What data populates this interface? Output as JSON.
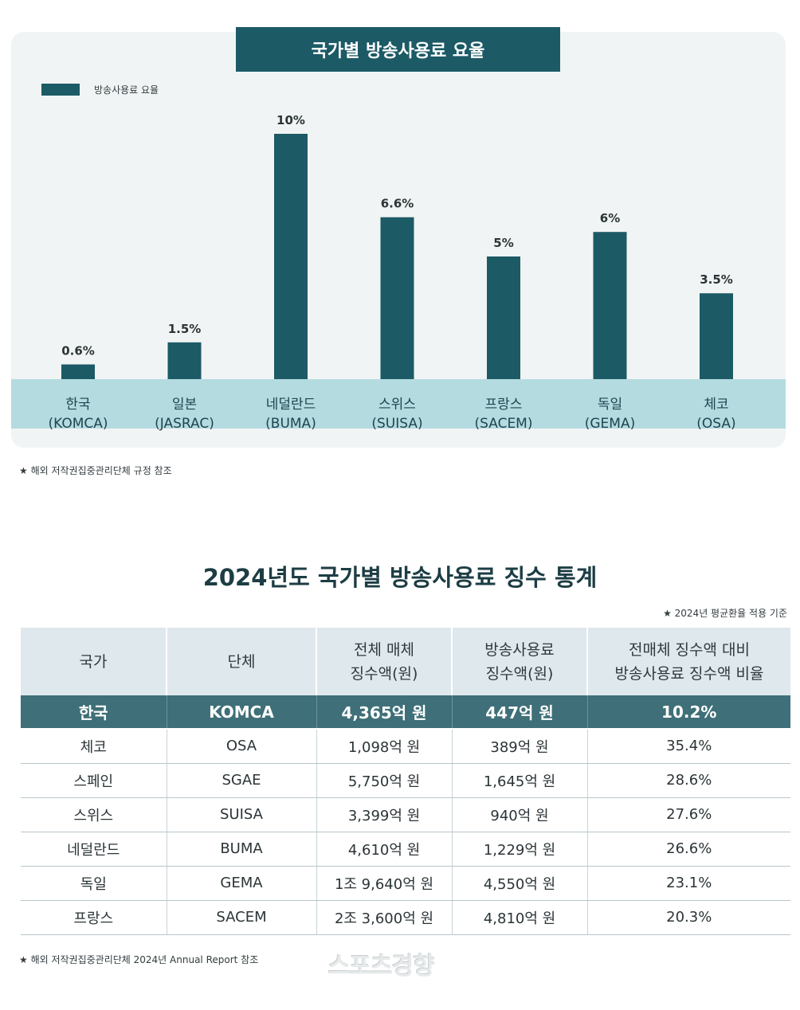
{
  "chart_data": {
    "type": "bar",
    "title": "국가별 방송사용료 요율",
    "legend": "방송사용료 요율",
    "categories": [
      {
        "name": "한국",
        "org": "(KOMCA)"
      },
      {
        "name": "일본",
        "org": "(JASRAC)"
      },
      {
        "name": "네덜란드",
        "org": "(BUMA)"
      },
      {
        "name": "스위스",
        "org": "(SUISA)"
      },
      {
        "name": "프랑스",
        "org": "(SACEM)"
      },
      {
        "name": "독일",
        "org": "(GEMA)"
      },
      {
        "name": "체코",
        "org": "(OSA)"
      }
    ],
    "values": [
      0.6,
      1.5,
      10,
      6.6,
      5,
      6,
      3.5
    ],
    "value_labels": [
      "0.6%",
      "1.5%",
      "10%",
      "6.6%",
      "5%",
      "6%",
      "3.5%"
    ],
    "ylim": [
      0,
      10
    ],
    "colors": {
      "bar": "#1c5a66",
      "axis_band": "#b4dce0",
      "card": "#f1f4f4"
    }
  },
  "chart_note": "해외 저작권집중관리단체 규정 참조",
  "table": {
    "title": "2024년도 국가별 방송사용료 징수 통계",
    "note": "2024년 평균환율 적용 기준",
    "headers": [
      [
        "국가"
      ],
      [
        "단체"
      ],
      [
        "전체 매체",
        "징수액(원)"
      ],
      [
        "방송사용료",
        "징수액(원)"
      ],
      [
        "전매체 징수액 대비",
        "방송사용료 징수액 비율"
      ]
    ],
    "rows": [
      [
        "한국",
        "KOMCA",
        "4,365억 원",
        "447억 원",
        "10.2%"
      ],
      [
        "체코",
        "OSA",
        "1,098억 원",
        "389억 원",
        "35.4%"
      ],
      [
        "스페인",
        "SGAE",
        "5,750억 원",
        "1,645억 원",
        "28.6%"
      ],
      [
        "스위스",
        "SUISA",
        "3,399억 원",
        "940억 원",
        "27.6%"
      ],
      [
        "네덜란드",
        "BUMA",
        "4,610억 원",
        "1,229억 원",
        "26.6%"
      ],
      [
        "독일",
        "GEMA",
        "1조 9,640억 원",
        "4,550억 원",
        "23.1%"
      ],
      [
        "프랑스",
        "SACEM",
        "2조 3,600억 원",
        "4,810억 원",
        "20.3%"
      ]
    ],
    "source": "해외 저작권집중관리단체 2024년 Annual Report 참조"
  },
  "watermark": "스포츠경향"
}
